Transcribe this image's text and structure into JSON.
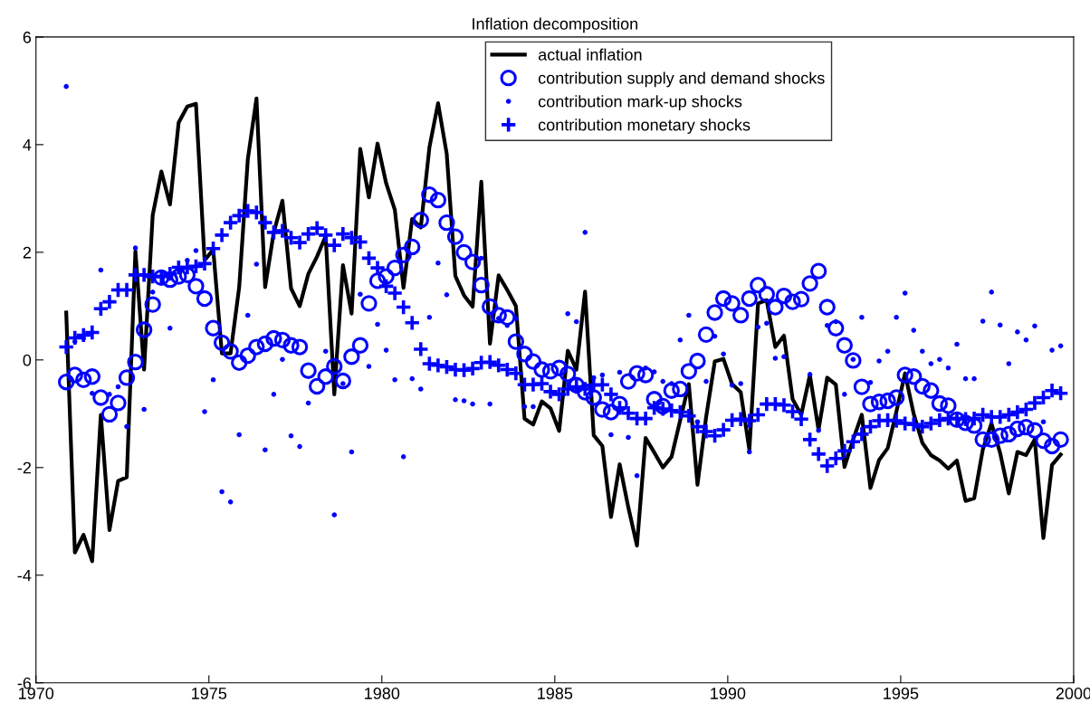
{
  "chart_data": {
    "type": "line",
    "title": "Inflation decomposition",
    "x": [
      1970.875,
      1971.125,
      1971.375,
      1971.625,
      1971.875,
      1972.125,
      1972.375,
      1972.625,
      1972.875,
      1973.125,
      1973.375,
      1973.625,
      1973.875,
      1974.125,
      1974.375,
      1974.625,
      1974.875,
      1975.125,
      1975.375,
      1975.625,
      1975.875,
      1976.125,
      1976.375,
      1976.625,
      1976.875,
      1977.125,
      1977.375,
      1977.625,
      1977.875,
      1978.125,
      1978.375,
      1978.625,
      1978.875,
      1979.125,
      1979.375,
      1979.625,
      1979.875,
      1980.125,
      1980.375,
      1980.625,
      1980.875,
      1981.125,
      1981.375,
      1981.625,
      1981.875,
      1982.125,
      1982.375,
      1982.625,
      1982.875,
      1983.125,
      1983.375,
      1983.625,
      1983.875,
      1984.125,
      1984.375,
      1984.625,
      1984.875,
      1985.125,
      1985.375,
      1985.625,
      1985.875,
      1986.125,
      1986.375,
      1986.625,
      1986.875,
      1987.125,
      1987.375,
      1987.625,
      1987.875,
      1988.125,
      1988.375,
      1988.625,
      1988.875,
      1989.125,
      1989.375,
      1989.625,
      1989.875,
      1990.125,
      1990.375,
      1990.625,
      1990.875,
      1991.125,
      1991.375,
      1991.625,
      1991.875,
      1992.125,
      1992.375,
      1992.625,
      1992.875,
      1993.125,
      1993.375,
      1993.625,
      1993.875,
      1994.125,
      1994.375,
      1994.625,
      1994.875,
      1995.125,
      1995.375,
      1995.625,
      1995.875,
      1996.125,
      1996.375,
      1996.625,
      1996.875,
      1997.125,
      1997.375,
      1997.625,
      1997.875,
      1998.125,
      1998.375,
      1998.625,
      1998.875,
      1999.125,
      1999.375,
      1999.625
    ],
    "series": [
      {
        "name": "actual inflation",
        "marker": "none",
        "line_style": "solid",
        "color": "#000000",
        "values": [
          0.88,
          -3.58,
          -3.25,
          -3.74,
          -1.02,
          -3.16,
          -2.25,
          -2.18,
          2.02,
          -0.18,
          2.69,
          3.5,
          2.89,
          4.41,
          4.71,
          4.76,
          1.85,
          2.05,
          0.12,
          0.12,
          1.35,
          3.73,
          4.86,
          1.35,
          2.37,
          2.96,
          1.33,
          1.0,
          1.6,
          1.92,
          2.3,
          -0.64,
          1.76,
          0.86,
          3.92,
          3.02,
          4.02,
          3.28,
          2.79,
          1.34,
          2.62,
          2.46,
          3.95,
          4.77,
          3.83,
          1.56,
          1.2,
          0.99,
          3.31,
          0.3,
          1.57,
          1.3,
          1.0,
          -1.09,
          -1.2,
          -0.77,
          -0.9,
          -1.32,
          0.17,
          -0.18,
          1.27,
          -1.4,
          -1.6,
          -2.92,
          -1.94,
          -2.74,
          -3.45,
          -1.45,
          -1.72,
          -2.0,
          -1.8,
          -1.12,
          -0.45,
          -2.32,
          -1.06,
          -0.03,
          0.02,
          -0.45,
          -0.6,
          -1.67,
          1.05,
          1.11,
          0.24,
          0.45,
          -0.73,
          -1.02,
          -0.28,
          -1.3,
          -0.33,
          -0.46,
          -1.99,
          -1.48,
          -1.02,
          -2.38,
          -1.86,
          -1.64,
          -0.96,
          -0.25,
          -1.0,
          -1.54,
          -1.77,
          -1.87,
          -2.02,
          -1.87,
          -2.62,
          -2.57,
          -1.66,
          -1.18,
          -1.73,
          -2.48,
          -1.71,
          -1.77,
          -1.48,
          -3.31,
          -1.95,
          -1.76
        ]
      },
      {
        "name": "contribution supply and demand shocks",
        "type": "scatter",
        "marker": "circle",
        "color": "#0000ff",
        "values": [
          -0.41,
          -0.28,
          -0.37,
          -0.31,
          -0.7,
          -1.01,
          -0.8,
          -0.33,
          -0.04,
          0.56,
          1.03,
          1.53,
          1.49,
          1.55,
          1.58,
          1.37,
          1.14,
          0.59,
          0.32,
          0.16,
          -0.05,
          0.08,
          0.24,
          0.3,
          0.4,
          0.37,
          0.27,
          0.24,
          -0.2,
          -0.49,
          -0.31,
          -0.12,
          -0.39,
          0.06,
          0.27,
          1.05,
          1.47,
          1.55,
          1.71,
          1.95,
          2.1,
          2.6,
          3.07,
          2.97,
          2.55,
          2.29,
          2.0,
          1.82,
          1.39,
          0.99,
          0.83,
          0.79,
          0.34,
          0.11,
          -0.03,
          -0.18,
          -0.21,
          -0.15,
          -0.26,
          -0.47,
          -0.6,
          -0.7,
          -0.92,
          -0.97,
          -0.82,
          -0.4,
          -0.25,
          -0.28,
          -0.73,
          -0.86,
          -0.57,
          -0.54,
          -0.21,
          -0.02,
          0.47,
          0.88,
          1.14,
          1.05,
          0.83,
          1.14,
          1.39,
          1.22,
          0.98,
          1.19,
          1.08,
          1.13,
          1.42,
          1.65,
          0.98,
          0.59,
          0.27,
          -0.01,
          -0.5,
          -0.82,
          -0.78,
          -0.76,
          -0.7,
          -0.28,
          -0.31,
          -0.49,
          -0.57,
          -0.81,
          -0.85,
          -1.11,
          -1.17,
          -1.22,
          -1.48,
          -1.48,
          -1.41,
          -1.38,
          -1.28,
          -1.25,
          -1.31,
          -1.5,
          -1.6,
          -1.48
        ]
      },
      {
        "name": "contribution mark-up shocks",
        "type": "scatter",
        "marker": "dot",
        "color": "#0000ff",
        "values": [
          5.08,
          0.34,
          0.4,
          -0.62,
          1.67,
          -0.64,
          -0.5,
          -1.24,
          2.08,
          -0.92,
          1.26,
          null,
          0.59,
          null,
          1.85,
          2.03,
          -0.96,
          -0.37,
          -2.45,
          -2.64,
          -1.39,
          0.83,
          1.78,
          -1.67,
          -0.64,
          0.01,
          -1.41,
          -1.61,
          -0.8,
          null,
          0.16,
          -2.88,
          -0.44,
          -1.71,
          1.22,
          -0.12,
          0.66,
          0.18,
          -0.37,
          -1.8,
          -0.35,
          -0.54,
          0.79,
          1.8,
          1.21,
          -0.74,
          -0.76,
          -0.82,
          1.89,
          -0.82,
          0.77,
          0.64,
          0.77,
          -0.87,
          -0.87,
          null,
          null,
          null,
          0.86,
          0.71,
          2.37,
          -0.33,
          -0.28,
          -1.39,
          -0.23,
          -1.44,
          -2.15,
          -0.15,
          -0.22,
          -0.4,
          -0.44,
          0.37,
          0.83,
          -1.15,
          -0.4,
          0.44,
          0.11,
          -0.47,
          -0.44,
          -1.71,
          0.61,
          0.68,
          0.03,
          0.06,
          null,
          null,
          -0.27,
          -1.31,
          0.64,
          0.71,
          -0.64,
          0.01,
          0.79,
          -0.42,
          -0.02,
          0.16,
          0.79,
          1.24,
          0.55,
          0.16,
          -0.07,
          0.01,
          -0.15,
          0.29,
          -0.35,
          -0.35,
          0.72,
          1.26,
          0.65,
          -0.07,
          0.52,
          0.37,
          0.63,
          -1.15,
          0.18,
          0.26
        ]
      },
      {
        "name": "contribution monetary shocks",
        "type": "scatter",
        "marker": "cross",
        "color": "#0000ff",
        "values": [
          0.24,
          0.41,
          0.46,
          0.51,
          0.95,
          1.08,
          1.3,
          1.3,
          1.58,
          1.58,
          1.55,
          1.55,
          1.6,
          1.72,
          1.72,
          1.74,
          1.79,
          2.07,
          2.32,
          2.55,
          2.68,
          2.77,
          2.74,
          2.55,
          2.37,
          2.4,
          2.27,
          2.18,
          2.34,
          2.45,
          2.32,
          2.13,
          2.34,
          2.27,
          2.19,
          1.89,
          1.71,
          1.37,
          1.24,
          0.98,
          0.69,
          0.2,
          -0.07,
          -0.1,
          -0.13,
          -0.18,
          -0.19,
          -0.16,
          -0.05,
          -0.04,
          -0.1,
          -0.18,
          -0.25,
          -0.46,
          -0.46,
          -0.44,
          -0.59,
          -0.64,
          -0.54,
          -0.5,
          -0.54,
          -0.47,
          -0.46,
          -0.64,
          -0.89,
          -0.99,
          -1.09,
          -1.09,
          -0.89,
          -0.91,
          -0.94,
          -0.97,
          -1.04,
          -1.24,
          -1.33,
          -1.41,
          -1.3,
          -1.12,
          -1.1,
          -1.13,
          -1.02,
          -0.82,
          -0.82,
          -0.84,
          -0.96,
          -1.1,
          -1.48,
          -1.75,
          -1.97,
          -1.83,
          -1.69,
          -1.52,
          -1.38,
          -1.24,
          -1.13,
          -1.12,
          -1.13,
          -1.18,
          -1.2,
          -1.24,
          -1.18,
          -1.12,
          -1.09,
          -1.09,
          -1.1,
          -1.09,
          -1.02,
          -1.06,
          -1.06,
          -1.02,
          -0.97,
          -0.92,
          -0.8,
          -0.7,
          -0.57,
          -0.62
        ]
      }
    ],
    "xlim": [
      1970,
      2000
    ],
    "xticks": [
      1970,
      1975,
      1980,
      1985,
      1990,
      1995,
      2000
    ],
    "ylim": [
      -6,
      6
    ],
    "yticks": [
      -6,
      -4,
      -2,
      0,
      2,
      4,
      6
    ],
    "grid": false,
    "legend": "top"
  }
}
